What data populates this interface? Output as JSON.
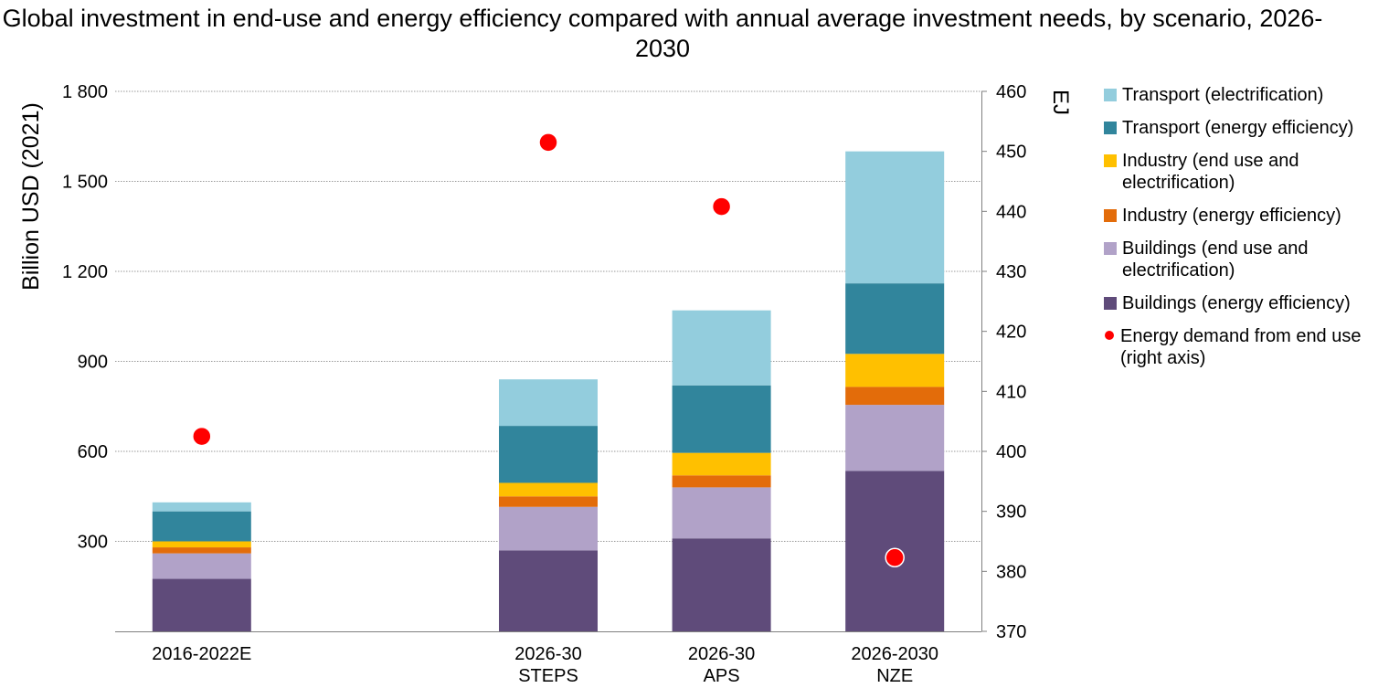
{
  "chart_data": {
    "type": "bar",
    "stacked": true,
    "title": "Global investment in end-use and energy efficiency compared with annual average investment needs, by scenario, 2026-2030",
    "ylabel": "Billion USD (2021)",
    "y2label": "EJ",
    "ylim": [
      0,
      1800
    ],
    "yticks": [
      300,
      600,
      900,
      1200,
      1500,
      1800
    ],
    "ytick_labels": [
      "300",
      "600",
      "900",
      "1 200",
      "1 500",
      "1 800"
    ],
    "y2lim": [
      370,
      460
    ],
    "y2ticks": [
      370,
      380,
      390,
      400,
      410,
      420,
      430,
      440,
      450,
      460
    ],
    "y2tick_labels": [
      "370",
      "380",
      "390",
      "400",
      "410",
      "420",
      "430",
      "440",
      "450",
      "460"
    ],
    "grid": true,
    "legend_position": "right",
    "categories": [
      {
        "line1": "2016-2022E",
        "line2": ""
      },
      {
        "line1": "2026-30",
        "line2": "STEPS"
      },
      {
        "line1": "2026-30",
        "line2": "APS"
      },
      {
        "line1": "2026-2030",
        "line2": "NZE"
      }
    ],
    "category_slots": [
      0,
      2,
      3,
      4
    ],
    "series": [
      {
        "name": "Buildings (energy efficiency)",
        "color": "#5f4b7a",
        "values": [
          175,
          270,
          310,
          535
        ]
      },
      {
        "name": "Buildings (end use and electrification)",
        "color": "#b1a2c8",
        "values": [
          85,
          145,
          170,
          220
        ]
      },
      {
        "name": "Industry (energy efficiency)",
        "color": "#e36c0a",
        "values": [
          20,
          35,
          40,
          60
        ]
      },
      {
        "name": "Industry (end use and electrification)",
        "color": "#ffc000",
        "values": [
          20,
          45,
          75,
          110
        ]
      },
      {
        "name": "Transport (energy efficiency)",
        "color": "#31859c",
        "values": [
          100,
          190,
          225,
          235
        ]
      },
      {
        "name": "Transport (electrification)",
        "color": "#93cddd",
        "values": [
          30,
          155,
          250,
          440
        ]
      }
    ],
    "point_series": {
      "name": "Energy demand from end use (right axis)",
      "color": "#ff0000",
      "values": [
        402.5,
        451.5,
        440.8,
        382.3
      ]
    },
    "legend_order": [
      "Transport (electrification)",
      "Transport (energy efficiency)",
      "Industry (end use and electrification)",
      "Industry (energy efficiency)",
      "Buildings (end use and electrification)",
      "Buildings (energy efficiency)",
      "Energy demand from end use (right axis)"
    ]
  }
}
